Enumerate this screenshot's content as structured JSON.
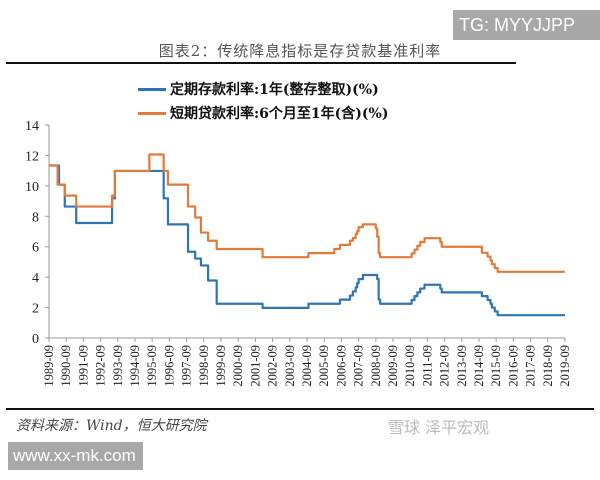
{
  "watermark_top": "TG: MYYJJPP",
  "watermark_bottom": "www.xx-mk.com",
  "watermark_logo": "雪球 泽平宏观",
  "source": "资料来源：Wind，恒大研究院",
  "chart_data": {
    "type": "line",
    "title": "图表2：传统降息指标是存贷款基准利率",
    "xlabel": "",
    "ylabel": "",
    "ylim": [
      0,
      14
    ],
    "yticks": [
      0,
      2,
      4,
      6,
      8,
      10,
      12,
      14
    ],
    "xlim": [
      "1989-09",
      "2019-09"
    ],
    "xticks": [
      "1989-09",
      "1990-09",
      "1991-09",
      "1992-09",
      "1993-09",
      "1994-09",
      "1995-09",
      "1996-09",
      "1997-09",
      "1998-09",
      "1999-09",
      "2000-09",
      "2001-09",
      "2002-09",
      "2003-09",
      "2004-09",
      "2005-09",
      "2006-09",
      "2007-09",
      "2008-09",
      "2009-09",
      "2010-09",
      "2011-09",
      "2012-09",
      "2013-09",
      "2014-09",
      "2015-09",
      "2016-09",
      "2017-09",
      "2018-09",
      "2019-09"
    ],
    "grid": false,
    "legend": "top-center",
    "step": true,
    "series": [
      {
        "name": "定期存款利率:1年(整存整取)(%)",
        "color": "#2e75b6",
        "points": [
          [
            "1989-09",
            11.34
          ],
          [
            "1990-04",
            10.08
          ],
          [
            "1990-08",
            8.64
          ],
          [
            "1991-04",
            7.56
          ],
          [
            "1993-05",
            9.18
          ],
          [
            "1993-07",
            10.98
          ],
          [
            "1996-05",
            9.18
          ],
          [
            "1996-08",
            7.47
          ],
          [
            "1997-10",
            5.67
          ],
          [
            "1998-03",
            5.22
          ],
          [
            "1998-07",
            4.77
          ],
          [
            "1998-12",
            3.78
          ],
          [
            "1999-06",
            2.25
          ],
          [
            "2002-02",
            1.98
          ],
          [
            "2004-10",
            2.25
          ],
          [
            "2006-08",
            2.52
          ],
          [
            "2007-03",
            2.79
          ],
          [
            "2007-05",
            3.06
          ],
          [
            "2007-07",
            3.33
          ],
          [
            "2007-08",
            3.6
          ],
          [
            "2007-09",
            3.87
          ],
          [
            "2007-12",
            4.14
          ],
          [
            "2008-10",
            3.87
          ],
          [
            "2008-11",
            2.52
          ],
          [
            "2008-12",
            2.25
          ],
          [
            "2010-10",
            2.5
          ],
          [
            "2010-12",
            2.75
          ],
          [
            "2011-02",
            3.0
          ],
          [
            "2011-04",
            3.25
          ],
          [
            "2011-07",
            3.5
          ],
          [
            "2012-06",
            3.25
          ],
          [
            "2012-07",
            3.0
          ],
          [
            "2014-11",
            2.75
          ],
          [
            "2015-03",
            2.5
          ],
          [
            "2015-05",
            2.25
          ],
          [
            "2015-06",
            2.0
          ],
          [
            "2015-08",
            1.75
          ],
          [
            "2015-10",
            1.5
          ],
          [
            "2019-09",
            1.5
          ]
        ]
      },
      {
        "name": "短期贷款利率:6个月至1年(含)(%)",
        "color": "#e07b39",
        "points": [
          [
            "1989-09",
            11.34
          ],
          [
            "1990-03",
            10.08
          ],
          [
            "1990-08",
            9.36
          ],
          [
            "1991-04",
            8.64
          ],
          [
            "1993-05",
            9.36
          ],
          [
            "1993-07",
            10.98
          ],
          [
            "1995-01",
            10.98
          ],
          [
            "1995-07",
            12.06
          ],
          [
            "1996-05",
            10.98
          ],
          [
            "1996-08",
            10.08
          ],
          [
            "1997-10",
            8.64
          ],
          [
            "1998-03",
            7.92
          ],
          [
            "1998-07",
            6.93
          ],
          [
            "1998-12",
            6.39
          ],
          [
            "1999-06",
            5.85
          ],
          [
            "2002-02",
            5.31
          ],
          [
            "2004-10",
            5.58
          ],
          [
            "2006-04",
            5.85
          ],
          [
            "2006-08",
            6.12
          ],
          [
            "2007-03",
            6.39
          ],
          [
            "2007-05",
            6.57
          ],
          [
            "2007-07",
            6.84
          ],
          [
            "2007-08",
            7.02
          ],
          [
            "2007-09",
            7.29
          ],
          [
            "2007-12",
            7.47
          ],
          [
            "2008-09",
            7.2
          ],
          [
            "2008-10",
            6.66
          ],
          [
            "2008-11",
            5.58
          ],
          [
            "2008-12",
            5.31
          ],
          [
            "2010-10",
            5.56
          ],
          [
            "2010-12",
            5.81
          ],
          [
            "2011-02",
            6.06
          ],
          [
            "2011-04",
            6.31
          ],
          [
            "2011-07",
            6.56
          ],
          [
            "2012-06",
            6.31
          ],
          [
            "2012-07",
            6.0
          ],
          [
            "2014-11",
            5.6
          ],
          [
            "2015-03",
            5.35
          ],
          [
            "2015-05",
            5.1
          ],
          [
            "2015-06",
            4.85
          ],
          [
            "2015-08",
            4.6
          ],
          [
            "2015-10",
            4.35
          ],
          [
            "2019-09",
            4.35
          ]
        ]
      }
    ]
  }
}
